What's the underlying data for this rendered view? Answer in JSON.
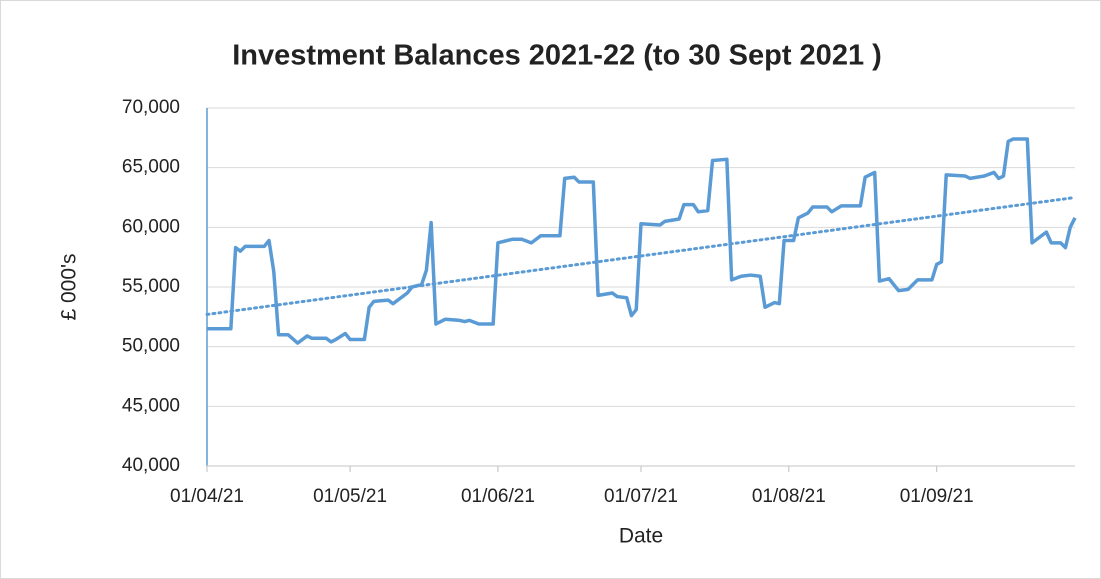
{
  "chart_data": {
    "type": "line",
    "title": "Investment Balances 2021-22 (to 30 Sept 2021 )",
    "x_label": "Date",
    "y_label": "£ 000's",
    "xlim": [
      "01/04/21",
      "30/09/21"
    ],
    "xticks": [
      "01/04/21",
      "01/05/21",
      "01/06/21",
      "01/07/21",
      "01/08/21",
      "01/09/21"
    ],
    "ylim": [
      40000,
      70000
    ],
    "yticks": [
      {
        "value": 40000,
        "label": "40,000"
      },
      {
        "value": 45000,
        "label": "45,000"
      },
      {
        "value": 50000,
        "label": "50,000"
      },
      {
        "value": 55000,
        "label": "55,000"
      },
      {
        "value": 60000,
        "label": "60,000"
      },
      {
        "value": 65000,
        "label": "65,000"
      },
      {
        "value": 70000,
        "label": "70,000"
      }
    ],
    "grid": true,
    "series": [
      {
        "color": "#5b9bd5",
        "style": "solid",
        "x": [
          "01/04/21",
          "06/04/21",
          "07/04/21",
          "08/04/21",
          "09/04/21",
          "13/04/21",
          "14/04/21",
          "15/04/21",
          "16/04/21",
          "18/04/21",
          "20/04/21",
          "22/04/21",
          "23/04/21",
          "26/04/21",
          "27/04/21",
          "28/04/21",
          "30/04/21",
          "01/05/21",
          "04/05/21",
          "05/05/21",
          "06/05/21",
          "09/05/21",
          "10/05/21",
          "13/05/21",
          "14/05/21",
          "16/05/21",
          "17/05/21",
          "18/05/21",
          "19/05/21",
          "21/05/21",
          "24/05/21",
          "25/05/21",
          "26/05/21",
          "28/05/21",
          "31/05/21",
          "01/06/21",
          "04/06/21",
          "06/06/21",
          "08/06/21",
          "10/06/21",
          "14/06/21",
          "15/06/21",
          "17/06/21",
          "18/06/21",
          "21/06/21",
          "22/06/21",
          "25/06/21",
          "26/06/21",
          "28/06/21",
          "29/06/21",
          "30/06/21",
          "01/07/21",
          "05/07/21",
          "06/07/21",
          "09/07/21",
          "10/07/21",
          "12/07/21",
          "13/07/21",
          "15/07/21",
          "16/07/21",
          "19/07/21",
          "20/07/21",
          "22/07/21",
          "24/07/21",
          "26/07/21",
          "27/07/21",
          "29/07/21",
          "30/07/21",
          "31/07/21",
          "02/08/21",
          "03/08/21",
          "05/08/21",
          "06/08/21",
          "09/08/21",
          "10/08/21",
          "12/08/21",
          "16/08/21",
          "17/08/21",
          "19/08/21",
          "20/08/21",
          "22/08/21",
          "24/08/21",
          "26/08/21",
          "28/08/21",
          "31/08/21",
          "01/09/21",
          "02/09/21",
          "03/09/21",
          "07/09/21",
          "08/09/21",
          "11/09/21",
          "13/09/21",
          "14/09/21",
          "15/09/21",
          "16/09/21",
          "17/09/21",
          "20/09/21",
          "21/09/21",
          "22/09/21",
          "24/09/21",
          "25/09/21",
          "27/09/21",
          "28/09/21",
          "29/09/21",
          "30/09/21"
        ],
        "values": [
          51500,
          51500,
          58300,
          58000,
          58400,
          58400,
          58900,
          56300,
          51000,
          51000,
          50300,
          50900,
          50700,
          50700,
          50400,
          50600,
          51100,
          50600,
          50600,
          53300,
          53800,
          53900,
          53600,
          54500,
          55000,
          55200,
          56400,
          60400,
          51900,
          52300,
          52200,
          52100,
          52200,
          51900,
          51900,
          58700,
          59000,
          59000,
          58700,
          59300,
          59300,
          64100,
          64200,
          63800,
          63800,
          54300,
          54500,
          54200,
          54100,
          52600,
          53100,
          60300,
          60200,
          60500,
          60700,
          61900,
          61900,
          61300,
          61400,
          65600,
          65700,
          55600,
          55900,
          56000,
          55900,
          53300,
          53700,
          53600,
          58900,
          58900,
          60800,
          61200,
          61700,
          61700,
          61300,
          61800,
          61800,
          64200,
          64600,
          55500,
          55700,
          54700,
          54800,
          55600,
          55600,
          56900,
          57100,
          64400,
          64300,
          64100,
          64300,
          64600,
          64100,
          64300,
          67200,
          67400,
          67400,
          58700,
          59000,
          59600,
          58700,
          58700,
          58300,
          60000,
          60800
        ]
      },
      {
        "color": "#5b9bd5",
        "style": "dotted",
        "x": [
          "01/04/21",
          "30/09/21"
        ],
        "values": [
          52700,
          62500
        ]
      }
    ]
  }
}
